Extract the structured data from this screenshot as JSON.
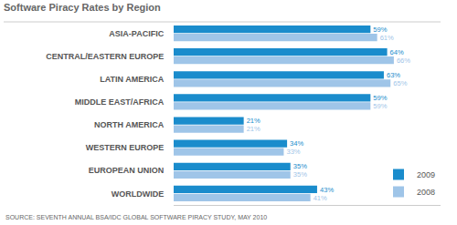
{
  "chart_data": {
    "type": "bar",
    "orientation": "horizontal",
    "title": "Software Piracy Rates by Region",
    "annotations": [
      "SOURCE: SEVENTH ANNUAL BSA/IDC GLOBAL SOFTWARE PIRACY STUDY, MAY 2010"
    ],
    "categories": [
      "ASIA-PACIFIC",
      "CENTRAL/EASTERN EUROPE",
      "LATIN AMERICA",
      "MIDDLE EAST/AFRICA",
      "NORTH AMERICA",
      "WESTERN EUROPE",
      "EUROPEAN UNION",
      "WORLDWIDE"
    ],
    "series": [
      {
        "name": "2009",
        "color": "#1a8ccc",
        "values": [
          59,
          64,
          63,
          59,
          21,
          34,
          35,
          43
        ],
        "value_labels": [
          "59%",
          "64%",
          "63%",
          "59%",
          "21%",
          "34%",
          "35%",
          "43%"
        ]
      },
      {
        "name": "2008",
        "color": "#9fc5e8",
        "values": [
          61,
          66,
          65,
          59,
          21,
          33,
          35,
          41
        ],
        "value_labels": [
          "61%",
          "66%",
          "65%",
          "59%",
          "21%",
          "33%",
          "35%",
          "41%"
        ]
      }
    ],
    "xlim": [
      0,
      80
    ],
    "data_labels": true,
    "tick_labels": "y",
    "grid": false,
    "legend": "bottom right"
  }
}
